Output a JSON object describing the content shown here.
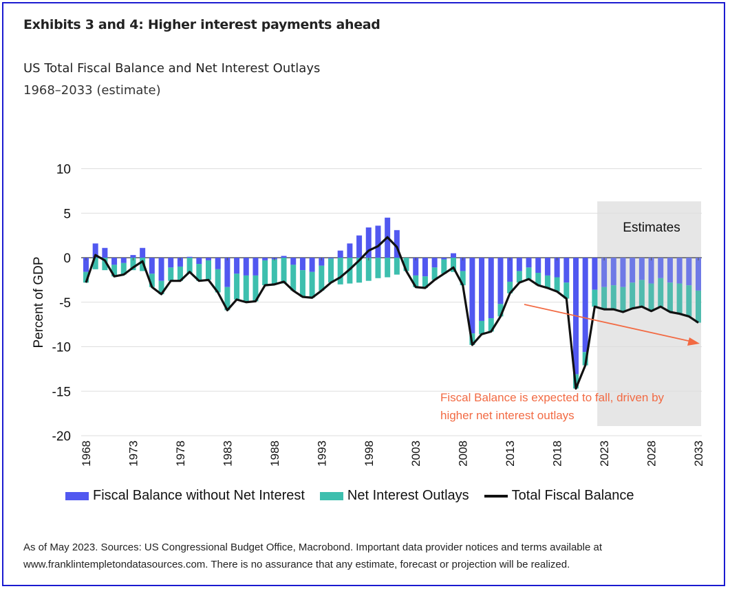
{
  "exhibit_title": "Exhibits 3 and 4: Higher interest payments ahead",
  "chart_data": {
    "type": "bar",
    "title": "US Total Fiscal Balance and Net Interest Outlays",
    "subtitle": "1968–2033 (estimate)",
    "xlabel": "",
    "ylabel": "Percent of GDP",
    "ylim": [
      -20,
      10
    ],
    "yticks": [
      10,
      5,
      0,
      -5,
      -10,
      -15,
      -20
    ],
    "xticks": [
      1968,
      1973,
      1978,
      1983,
      1988,
      1993,
      1998,
      2003,
      2008,
      2013,
      2018,
      2023,
      2028,
      2033
    ],
    "grid": true,
    "legend_position": "bottom",
    "estimate_region": {
      "from": 2023,
      "to": 2033,
      "label": "Estimates"
    },
    "annotation": {
      "text_line1": "Fiscal Balance is expected to fall, driven by",
      "text_line2": "higher net interest outlays",
      "color": "#F26A43"
    },
    "years": [
      1968,
      1969,
      1970,
      1971,
      1972,
      1973,
      1974,
      1975,
      1976,
      1977,
      1978,
      1979,
      1980,
      1981,
      1982,
      1983,
      1984,
      1985,
      1986,
      1987,
      1988,
      1989,
      1990,
      1991,
      1992,
      1993,
      1994,
      1995,
      1996,
      1997,
      1998,
      1999,
      2000,
      2001,
      2002,
      2003,
      2004,
      2005,
      2006,
      2007,
      2008,
      2009,
      2010,
      2011,
      2012,
      2013,
      2014,
      2015,
      2016,
      2017,
      2018,
      2019,
      2020,
      2021,
      2022,
      2023,
      2024,
      2025,
      2026,
      2027,
      2028,
      2029,
      2030,
      2031,
      2032,
      2033
    ],
    "series": [
      {
        "name": "Fiscal Balance without Net Interest",
        "color": "#5158F0",
        "kind": "bar",
        "values": [
          -1.6,
          1.6,
          1.1,
          -0.8,
          -0.6,
          0.3,
          1.1,
          -1.8,
          -2.6,
          -1.1,
          -1.0,
          0.1,
          -0.7,
          -0.3,
          -1.3,
          -3.3,
          -1.8,
          -2.0,
          -2.0,
          -0.3,
          -0.2,
          0.2,
          -0.8,
          -1.4,
          -1.6,
          -0.9,
          -0.1,
          0.8,
          1.6,
          2.5,
          3.4,
          3.6,
          4.5,
          3.1,
          0.0,
          -2.0,
          -2.1,
          -1.1,
          -0.2,
          0.5,
          -1.5,
          -8.5,
          -7.1,
          -6.8,
          -5.2,
          -2.7,
          -1.5,
          -1.1,
          -1.7,
          -2.0,
          -2.2,
          -2.8,
          -13.1,
          -10.6,
          -3.6,
          -3.3,
          -3.1,
          -3.3,
          -2.8,
          -2.5,
          -2.9,
          -2.3,
          -2.8,
          -2.9,
          -3.1,
          -3.7
        ]
      },
      {
        "name": "Net Interest Outlays",
        "color": "#3DBFAE",
        "kind": "bar",
        "values": [
          1.2,
          1.3,
          1.4,
          1.3,
          1.3,
          1.4,
          1.5,
          1.5,
          1.5,
          1.5,
          1.6,
          1.7,
          1.9,
          2.2,
          2.6,
          2.6,
          2.9,
          3.0,
          2.9,
          2.8,
          2.8,
          2.9,
          2.9,
          3.0,
          2.9,
          2.8,
          2.7,
          3.0,
          2.9,
          2.8,
          2.6,
          2.3,
          2.2,
          1.9,
          1.5,
          1.3,
          1.3,
          1.4,
          1.6,
          1.6,
          1.6,
          1.3,
          1.5,
          1.5,
          1.4,
          1.3,
          1.3,
          1.3,
          1.4,
          1.4,
          1.6,
          1.8,
          1.6,
          1.5,
          1.9,
          2.5,
          2.7,
          2.8,
          2.9,
          3.0,
          3.1,
          3.2,
          3.3,
          3.4,
          3.5,
          3.6
        ]
      },
      {
        "name": "Total Fiscal Balance",
        "color": "#111111",
        "kind": "line",
        "values": [
          -2.8,
          0.3,
          -0.3,
          -2.1,
          -1.9,
          -1.1,
          -0.4,
          -3.3,
          -4.1,
          -2.6,
          -2.6,
          -1.6,
          -2.6,
          -2.5,
          -3.9,
          -5.9,
          -4.7,
          -5.0,
          -4.9,
          -3.1,
          -3.0,
          -2.7,
          -3.7,
          -4.4,
          -4.5,
          -3.7,
          -2.8,
          -2.2,
          -1.3,
          -0.3,
          0.8,
          1.3,
          2.3,
          1.2,
          -1.5,
          -3.3,
          -3.4,
          -2.5,
          -1.8,
          -1.1,
          -3.1,
          -9.8,
          -8.6,
          -8.3,
          -6.6,
          -4.0,
          -2.8,
          -2.4,
          -3.1,
          -3.4,
          -3.8,
          -4.6,
          -14.7,
          -12.1,
          -5.5,
          -5.8,
          -5.8,
          -6.1,
          -5.7,
          -5.5,
          -6.0,
          -5.5,
          -6.1,
          -6.3,
          -6.6,
          -7.3
        ]
      }
    ]
  },
  "footer": {
    "line1": "As of May 2023. Sources: US Congressional Budget Office, Macrobond. Important data provider notices and terms available at",
    "line2": "www.franklintempletondatasources.com. There is no assurance that any estimate, forecast or projection will be realized."
  }
}
